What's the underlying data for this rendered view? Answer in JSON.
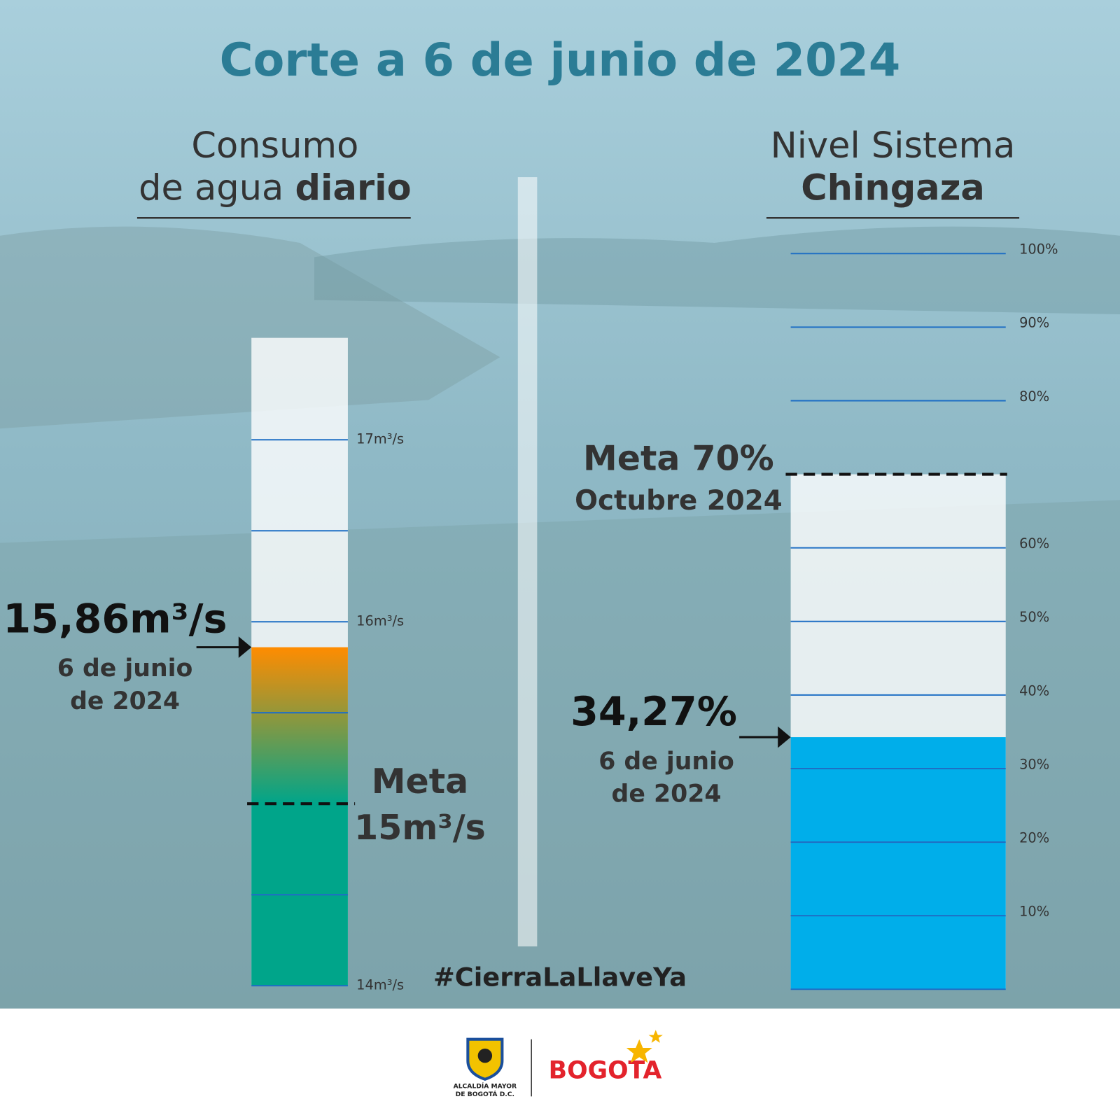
{
  "title": "Corte a 6 de junio de 2024",
  "hashtag": "#CierraLaLlaveYa",
  "footer": {
    "seal_text": [
      "ALCALDÍA MAYOR",
      "DE BOGOTÁ D.C."
    ],
    "brand": "BOGOTA"
  },
  "chart_data": [
    {
      "type": "gauge",
      "title": [
        "Consumo",
        "de agua",
        "diario"
      ],
      "values": [
        15.86
      ],
      "value_labels": [
        "15,86m³/s"
      ],
      "date": [
        "6 de junio",
        "de 2024"
      ],
      "target": {
        "value": 15,
        "label": [
          "Meta",
          "15m³/s"
        ]
      },
      "color": "#ff8c00",
      "target_color": "#00a58a",
      "ylim": [
        14,
        17.56
      ],
      "yticks": [
        {
          "value": 14,
          "label": "14m³/s"
        },
        {
          "value": 16,
          "label": "16m³/s"
        },
        {
          "value": 17,
          "label": "17m³/s"
        }
      ],
      "minor_yticks": [
        14.5,
        15.5,
        16.5
      ],
      "grid": true
    },
    {
      "type": "gauge",
      "title": [
        "Nivel Sistema",
        "Chingaza"
      ],
      "values": [
        34.27
      ],
      "value_labels": [
        "34,27%"
      ],
      "date": [
        "6 de junio",
        "de 2024"
      ],
      "target": {
        "value": 70,
        "label": [
          "Meta 70%",
          "Octubre 2024"
        ]
      },
      "color": "#00aeea",
      "target_color": "#00aeea",
      "ylim": [
        0,
        100
      ],
      "yticks": [
        {
          "value": 10,
          "label": "10%"
        },
        {
          "value": 20,
          "label": "20%"
        },
        {
          "value": 30,
          "label": "30%"
        },
        {
          "value": 40,
          "label": "40%"
        },
        {
          "value": 50,
          "label": "50%"
        },
        {
          "value": 60,
          "label": "60%"
        },
        {
          "value": 80,
          "label": "80%"
        },
        {
          "value": 90,
          "label": "90%"
        },
        {
          "value": 100,
          "label": "100%"
        }
      ],
      "minor_yticks": [
        0
      ],
      "grid": true
    }
  ]
}
